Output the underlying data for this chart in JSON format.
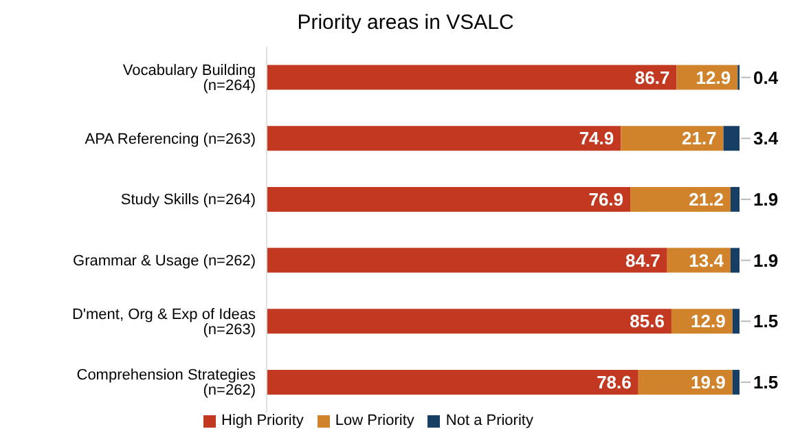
{
  "chart_data": {
    "type": "bar",
    "title": "Priority areas in VSALC",
    "orientation": "horizontal",
    "stacked": true,
    "data_labels": true,
    "legend": "bottom",
    "grid": false,
    "categories": [
      "Vocabulary Building (n=264)",
      "APA Referencing (n=263)",
      "Study Skills (n=264)",
      "Grammar & Usage (n=262)",
      "D'ment, Org & Exp of Ideas (n=263)",
      "Comprehension Strategies (n=262)"
    ],
    "series": [
      {
        "name": "High Priority",
        "color": "#c23820",
        "values": [
          86.7,
          74.9,
          76.9,
          84.7,
          85.6,
          78.6
        ]
      },
      {
        "name": "Low Priority",
        "color": "#d0832a",
        "values": [
          12.9,
          21.7,
          21.2,
          13.4,
          12.9,
          19.9
        ]
      },
      {
        "name": "Not a Priority",
        "color": "#173f66",
        "values": [
          0.4,
          3.4,
          1.9,
          1.9,
          1.5,
          1.5
        ]
      }
    ]
  }
}
